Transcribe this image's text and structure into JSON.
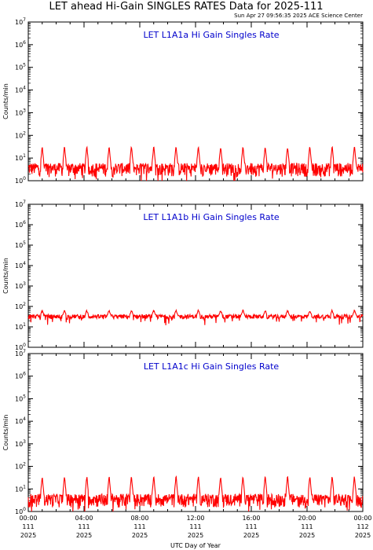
{
  "header": {
    "title": "LET ahead Hi-Gain SINGLES RATES Data for 2025-111",
    "timestamp": "Sun Apr 27 09:56:35 2025 ACE Science Center"
  },
  "colors": {
    "line": "#ff0000",
    "panel_title": "#0000cc",
    "axis": "#000000"
  },
  "chart_data": [
    {
      "type": "line",
      "title": "LET L1A1a Hi Gain Singles Rate",
      "ylabel": "Counts/min",
      "yscale": "log",
      "ylim": [
        1,
        10000000
      ],
      "ytick_base": "10",
      "ytick_exponents": [
        "0",
        "1",
        "2",
        "3",
        "4",
        "5",
        "6",
        "7"
      ],
      "xlim": [
        0,
        24
      ],
      "series": [
        {
          "baseline": [
            1.5,
            6
          ],
          "spike_peak": 35,
          "spike_period_hours": 1.6,
          "spike_first_hour": 1.0
        }
      ]
    },
    {
      "type": "line",
      "title": "LET L1A1b Hi Gain Singles Rate",
      "ylabel": "Counts/min",
      "yscale": "log",
      "ylim": [
        1,
        10000000
      ],
      "ytick_base": "10",
      "ytick_exponents": [
        "0",
        "1",
        "2",
        "3",
        "4",
        "5",
        "6",
        "7"
      ],
      "xlim": [
        0,
        24
      ],
      "series": [
        {
          "baseline": [
            25,
            40
          ],
          "spike_peak": 65,
          "spike_period_hours": 1.6,
          "spike_first_hour": 1.0
        }
      ]
    },
    {
      "type": "line",
      "title": "LET L1A1c Hi Gain Singles Rate",
      "ylabel": "Counts/min",
      "yscale": "log",
      "ylim": [
        1,
        10000000
      ],
      "ytick_base": "10",
      "ytick_exponents": [
        "0",
        "1",
        "2",
        "3",
        "4",
        "5",
        "6",
        "7"
      ],
      "xlim": [
        0,
        24
      ],
      "xlabel": "UTC Day of Year",
      "xticks": [
        {
          "hour": 0,
          "time": "00:00",
          "doy": "111",
          "year": "2025"
        },
        {
          "hour": 4,
          "time": "04:00",
          "doy": "111",
          "year": "2025"
        },
        {
          "hour": 8,
          "time": "08:00",
          "doy": "111",
          "year": "2025"
        },
        {
          "hour": 12,
          "time": "12:00",
          "doy": "111",
          "year": "2025"
        },
        {
          "hour": 16,
          "time": "16:00",
          "doy": "111",
          "year": "2025"
        },
        {
          "hour": 20,
          "time": "20:00",
          "doy": "111",
          "year": "2025"
        },
        {
          "hour": 24,
          "time": "00:00",
          "doy": "112",
          "year": "2025"
        }
      ],
      "series": [
        {
          "baseline": [
            1.5,
            6
          ],
          "spike_peak": 40,
          "spike_period_hours": 1.6,
          "spike_first_hour": 1.0
        }
      ]
    }
  ]
}
